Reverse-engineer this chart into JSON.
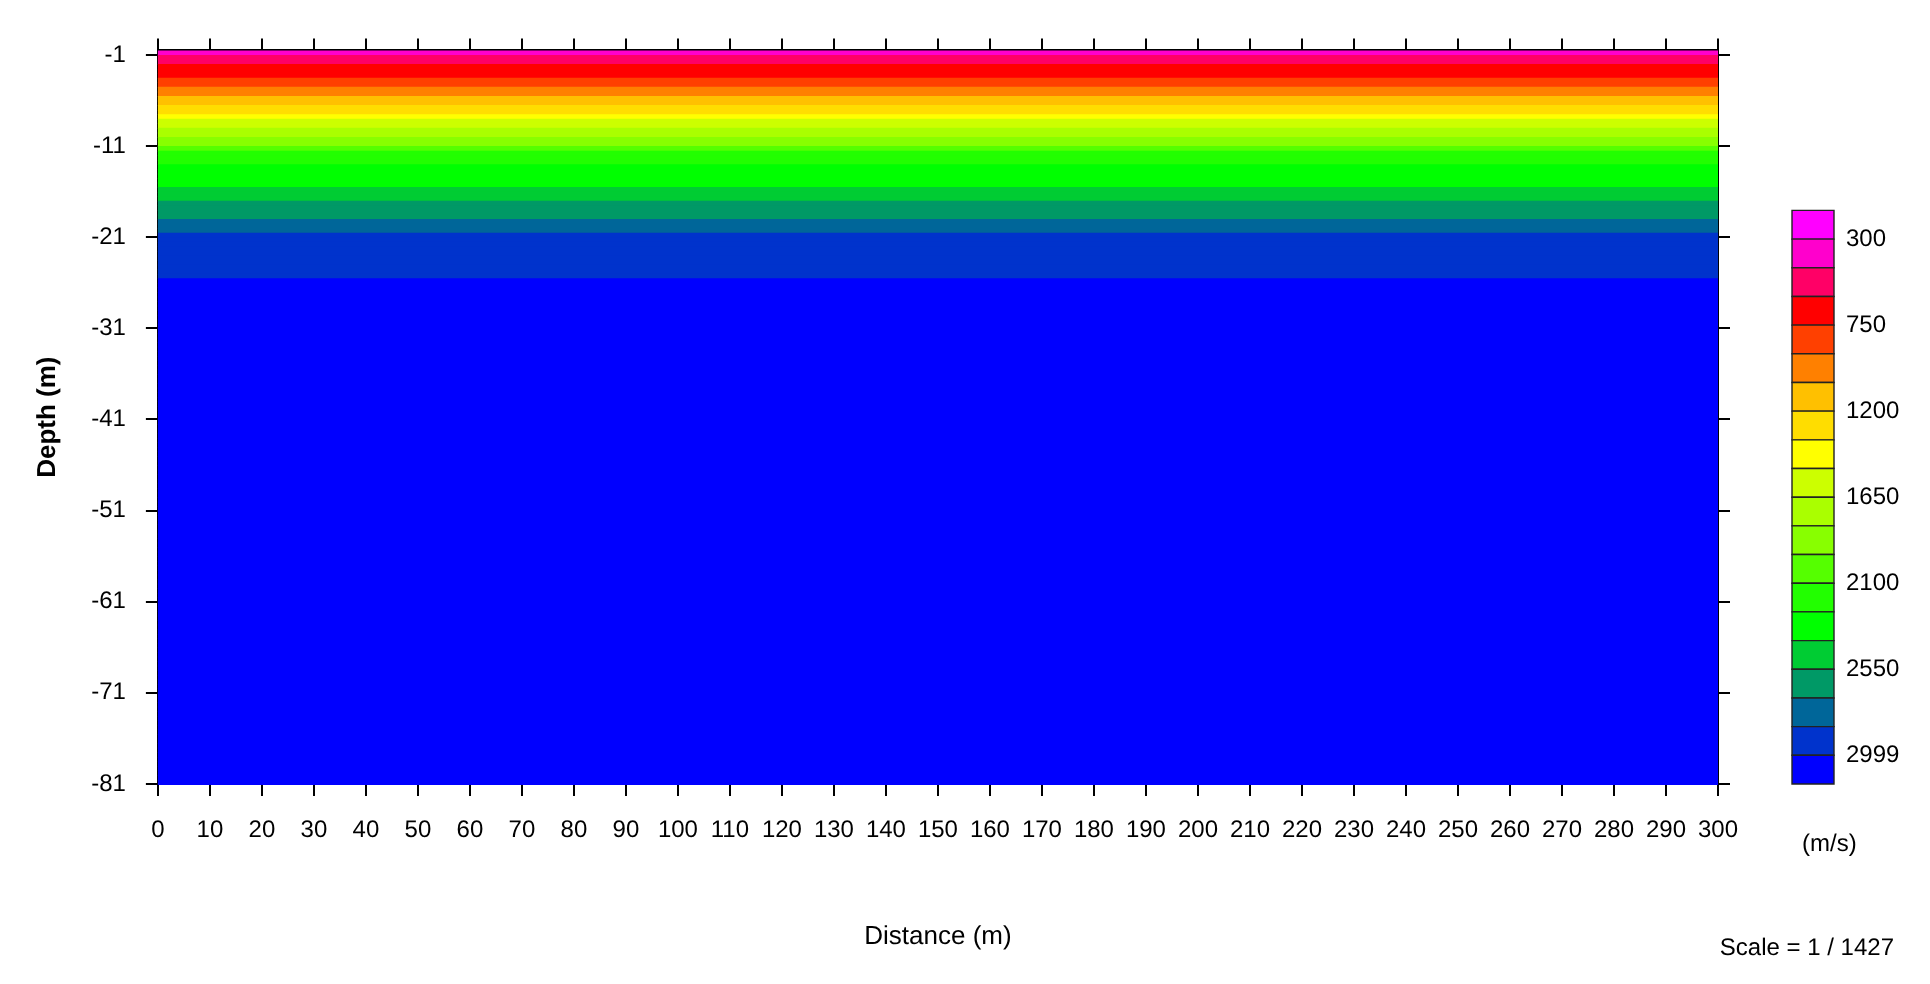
{
  "chart_data": {
    "type": "heatmap",
    "xlabel": "Distance (m)",
    "ylabel": "Depth (m)",
    "clabel": "(m/s)",
    "annotations": [
      "Scale = 1 / 1427"
    ],
    "cells": [
      [
        375
      ],
      [
        525
      ],
      [
        525
      ],
      [
        675
      ],
      [
        675
      ],
      [
        675
      ],
      [
        825
      ],
      [
        825
      ],
      [
        975
      ],
      [
        975
      ],
      [
        1125
      ],
      [
        1125
      ],
      [
        1275
      ],
      [
        1275
      ],
      [
        1425
      ],
      [
        1575
      ],
      [
        1575
      ],
      [
        1725
      ],
      [
        1725
      ],
      [
        1875
      ],
      [
        1875
      ],
      [
        2025
      ],
      [
        2175
      ],
      [
        2175
      ],
      [
        2175
      ],
      [
        2325
      ],
      [
        2325
      ],
      [
        2325
      ],
      [
        2325
      ],
      [
        2325
      ],
      [
        2475
      ],
      [
        2475
      ],
      [
        2475
      ],
      [
        2625
      ],
      [
        2625
      ],
      [
        2625
      ],
      [
        2625
      ],
      [
        2775
      ],
      [
        2775
      ],
      [
        2775
      ],
      [
        2925
      ],
      [
        2925
      ],
      [
        2925
      ],
      [
        2925
      ],
      [
        2925
      ],
      [
        2925
      ],
      [
        2925
      ],
      [
        2925
      ],
      [
        2925
      ],
      [
        2925
      ],
      [
        3075
      ],
      [
        3075
      ],
      [
        3075
      ],
      [
        3075
      ],
      [
        3075
      ],
      [
        3075
      ],
      [
        3075
      ],
      [
        3075
      ],
      [
        3075
      ],
      [
        3075
      ],
      [
        3075
      ],
      [
        3075
      ],
      [
        3075
      ],
      [
        3075
      ],
      [
        3075
      ],
      [
        3075
      ],
      [
        3075
      ],
      [
        3075
      ],
      [
        3075
      ],
      [
        3075
      ],
      [
        3075
      ],
      [
        3075
      ],
      [
        3075
      ],
      [
        3075
      ],
      [
        3075
      ],
      [
        3075
      ],
      [
        3075
      ],
      [
        3075
      ],
      [
        3075
      ],
      [
        3075
      ],
      [
        3075
      ],
      [
        3075
      ],
      [
        3075
      ],
      [
        3075
      ],
      [
        3075
      ],
      [
        3075
      ],
      [
        3075
      ],
      [
        3075
      ],
      [
        3075
      ],
      [
        3075
      ],
      [
        3075
      ],
      [
        3075
      ],
      [
        3075
      ],
      [
        3075
      ],
      [
        3075
      ],
      [
        3075
      ],
      [
        3075
      ],
      [
        3075
      ],
      [
        3075
      ],
      [
        3075
      ],
      [
        3075
      ],
      [
        3075
      ],
      [
        3075
      ],
      [
        3075
      ],
      [
        3075
      ],
      [
        3075
      ],
      [
        3075
      ],
      [
        3075
      ],
      [
        3075
      ],
      [
        3075
      ],
      [
        3075
      ],
      [
        3075
      ],
      [
        3075
      ],
      [
        3075
      ],
      [
        3075
      ],
      [
        3075
      ],
      [
        3075
      ],
      [
        3075
      ],
      [
        3075
      ],
      [
        3075
      ],
      [
        3075
      ],
      [
        3075
      ],
      [
        3075
      ],
      [
        3075
      ],
      [
        3075
      ],
      [
        3075
      ],
      [
        3075
      ],
      [
        3075
      ],
      [
        3075
      ],
      [
        3075
      ],
      [
        3075
      ],
      [
        3075
      ],
      [
        3075
      ],
      [
        3075
      ],
      [
        3075
      ],
      [
        3075
      ],
      [
        3075
      ],
      [
        3075
      ],
      [
        3075
      ],
      [
        3075
      ],
      [
        3075
      ],
      [
        3075
      ],
      [
        3075
      ],
      [
        3075
      ],
      [
        3075
      ],
      [
        3075
      ],
      [
        3075
      ],
      [
        3075
      ],
      [
        3075
      ],
      [
        3075
      ],
      [
        3075
      ],
      [
        3075
      ],
      [
        3075
      ],
      [
        3075
      ],
      [
        3075
      ],
      [
        3075
      ],
      [
        3075
      ],
      [
        3075
      ],
      [
        3075
      ],
      [
        3075
      ],
      [
        3075
      ]
    ],
    "colors": [
      "#ff00ff",
      "#ff00cc",
      "#ff0066",
      "#ff0000",
      "#ff4000",
      "#ff8000",
      "#ffc000",
      "#ffdd00",
      "#ffff00",
      "#ccff00",
      "#aaff00",
      "#88ff00",
      "#55ff00",
      "#22ff00",
      "#00ff00",
      "#00cc33",
      "#009966",
      "#006699",
      "#0033cc",
      "#0000ff"
    ],
    "clim": [
      150,
      3150
    ],
    "cticks": [
      300,
      750,
      1200,
      1650,
      2100,
      2550,
      2999
    ],
    "xlim": [
      0,
      300
    ],
    "xticks": [
      0,
      10,
      20,
      30,
      40,
      50,
      60,
      70,
      80,
      90,
      100,
      110,
      120,
      130,
      140,
      150,
      160,
      170,
      180,
      190,
      200,
      210,
      220,
      230,
      240,
      250,
      260,
      270,
      280,
      290,
      300
    ],
    "ylim": [
      -81,
      -0.5
    ],
    "yticks": [
      -1,
      -11,
      -21,
      -31,
      -41,
      -51,
      -61,
      -71,
      -81
    ],
    "legend": false
  }
}
